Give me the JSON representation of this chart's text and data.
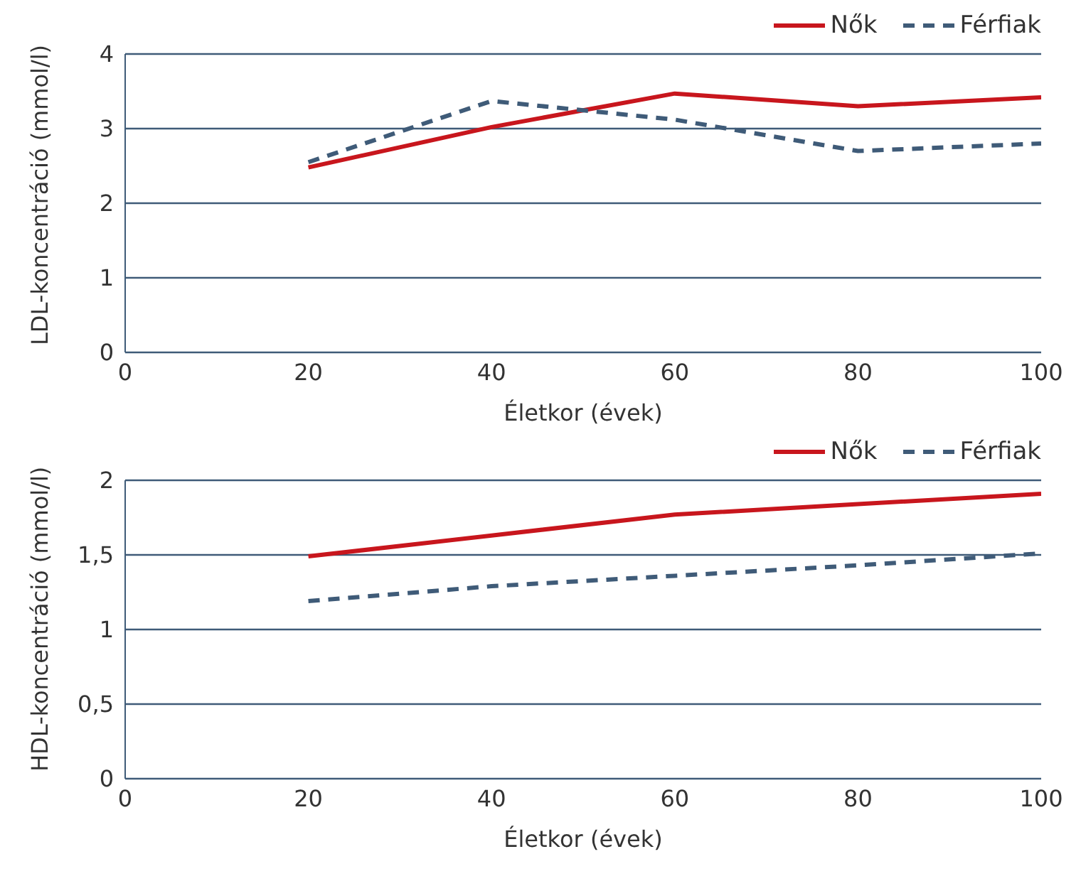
{
  "chart_data": [
    {
      "type": "line",
      "xlabel": "Életkor (évek)",
      "ylabel": "LDL-koncentráció (mmol/l)",
      "x": [
        20,
        40,
        60,
        80,
        100
      ],
      "xlim": [
        0,
        100
      ],
      "xticks": [
        0,
        20,
        40,
        60,
        80,
        100
      ],
      "ylim": [
        0,
        4
      ],
      "yticks": [
        0,
        1,
        2,
        3,
        4
      ],
      "grid": "y",
      "legend": "top right",
      "marker": "none",
      "series": [
        {
          "name": "Nők",
          "color": "#c8161d",
          "line_style": "solid",
          "values": [
            2.48,
            3.02,
            3.47,
            3.3,
            3.42
          ]
        },
        {
          "name": "Férfiak",
          "color": "#3f5b78",
          "line_style": "dashed",
          "values": [
            2.55,
            3.37,
            3.12,
            2.7,
            2.8
          ]
        }
      ]
    },
    {
      "type": "line",
      "xlabel": "Életkor (évek)",
      "ylabel": "HDL-koncentráció (mmol/l)",
      "x": [
        20,
        40,
        60,
        80,
        100
      ],
      "xlim": [
        0,
        100
      ],
      "xticks": [
        0,
        20,
        40,
        60,
        80,
        100
      ],
      "ylim": [
        0,
        2
      ],
      "yticks": [
        0,
        {
          "value": 0.5,
          "label": "0,5"
        },
        1,
        {
          "value": 1.5,
          "label": "1,5"
        },
        2
      ],
      "grid": "y",
      "legend": "top right",
      "marker": "none",
      "series": [
        {
          "name": "Nők",
          "color": "#c8161d",
          "line_style": "solid",
          "values": [
            1.49,
            1.63,
            1.77,
            1.84,
            1.91
          ]
        },
        {
          "name": "Férfiak",
          "color": "#3f5b78",
          "line_style": "dashed",
          "values": [
            1.19,
            1.29,
            1.36,
            1.43,
            1.51
          ]
        }
      ]
    }
  ]
}
